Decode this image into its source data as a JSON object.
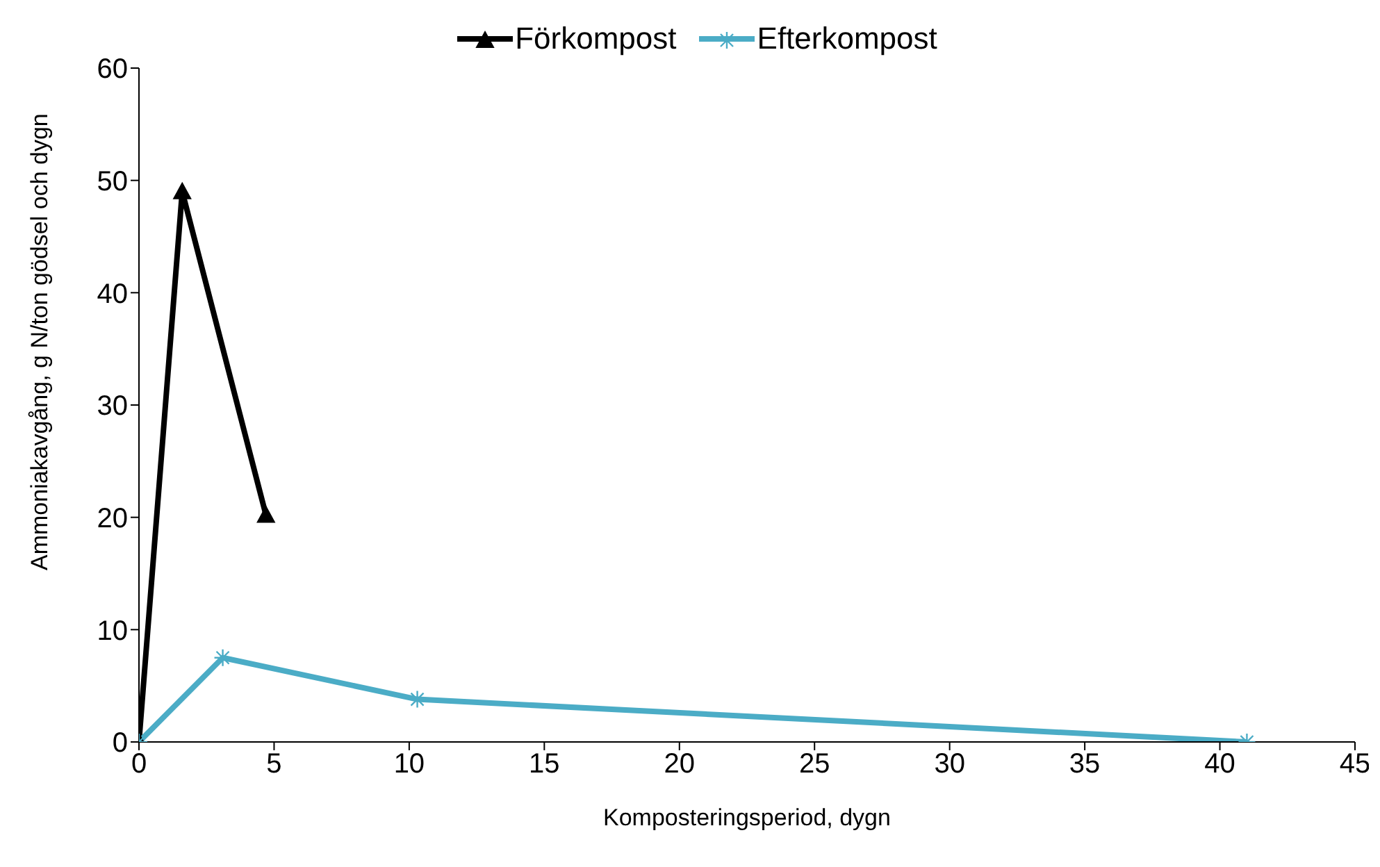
{
  "chart_data": {
    "type": "line",
    "xlabel": "Komposteringsperiod, dygn",
    "ylabel": "Ammoniakavgång, g N/ton gödsel och dygn",
    "xlim": [
      0,
      45
    ],
    "xticks": [
      0,
      5,
      10,
      15,
      20,
      25,
      30,
      35,
      40,
      45
    ],
    "ylim": [
      0,
      60
    ],
    "yticks": [
      0,
      10,
      20,
      30,
      40,
      50,
      60
    ],
    "grid": false,
    "legend": "top",
    "line_style": "solid",
    "series": [
      {
        "name": "Förkompost",
        "color": "#000000",
        "marker": "triangle",
        "x": [
          0,
          1.6,
          4.7
        ],
        "values": [
          0,
          49,
          20.2
        ]
      },
      {
        "name": "Efterkompost",
        "color": "#4bacc6",
        "marker": "cross",
        "x": [
          0,
          3.1,
          10.3,
          41
        ],
        "values": [
          0,
          7.5,
          3.8,
          0
        ]
      }
    ]
  }
}
